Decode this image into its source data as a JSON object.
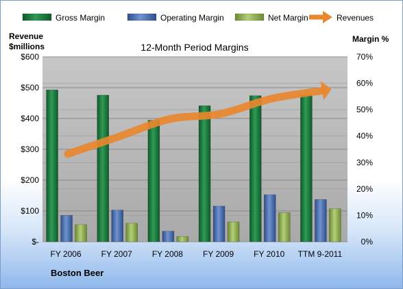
{
  "chart_data": {
    "type": "bar",
    "title": "12-Month Period Margins",
    "company": "Boston Beer",
    "y_left_label_line1": "Revenue",
    "y_left_label_line2": "$millions",
    "y_right_label": "Margin %",
    "categories": [
      "FY 2006",
      "FY 2007",
      "FY 2008",
      "FY 2009",
      "FY 2010",
      "TTM 9-2011"
    ],
    "y_left_ticks": [
      "$-",
      "$100",
      "$200",
      "$300",
      "$400",
      "$500",
      "$600"
    ],
    "y_right_ticks": [
      "0%",
      "10%",
      "20%",
      "30%",
      "40%",
      "50%",
      "60%",
      "70%"
    ],
    "ylim_left": [
      0,
      600
    ],
    "ylim_right": [
      0,
      70
    ],
    "legend_position": "top",
    "grid": true,
    "series": [
      {
        "name": "Gross Margin",
        "kind": "bar",
        "axis": "right",
        "unit": "%",
        "color": "#1a7a3c",
        "values": [
          57.5,
          55.5,
          46.0,
          51.5,
          55.3,
          55.6
        ]
      },
      {
        "name": "Operating Margin",
        "kind": "bar",
        "axis": "right",
        "unit": "%",
        "color": "#4a6fae",
        "values": [
          10.0,
          12.0,
          4.0,
          13.5,
          17.8,
          16.0
        ]
      },
      {
        "name": "Net Margin",
        "kind": "bar",
        "axis": "right",
        "unit": "%",
        "color": "#8fae4f",
        "values": [
          6.5,
          7.0,
          2.0,
          7.5,
          11.0,
          12.5
        ]
      },
      {
        "name": "Revenues",
        "kind": "line",
        "axis": "left",
        "unit": "$M",
        "color": "#e8872e",
        "values": [
          285,
          341,
          398,
          415,
          464,
          490
        ]
      }
    ]
  }
}
